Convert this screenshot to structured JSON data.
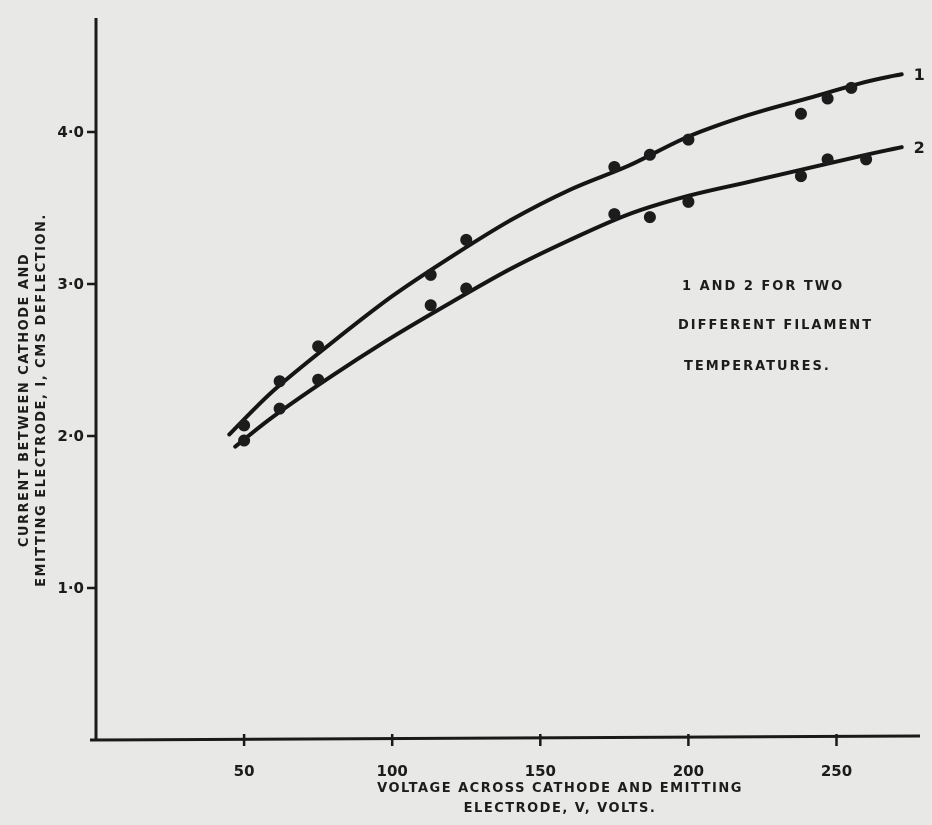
{
  "chart_data": {
    "type": "line",
    "title": "",
    "xlabel_lines": [
      "VOLTAGE ACROSS CATHODE AND EMITTING",
      "ELECTRODE, V, VOLTS."
    ],
    "ylabel_lines": [
      "CURRENT BETWEEN CATHODE AND",
      "EMITTING ELECTRODE, I, CMS DEFLECTION."
    ],
    "xlim": [
      0,
      275
    ],
    "ylim": [
      0,
      4.7
    ],
    "xticks": [
      {
        "value": 50,
        "label": "50"
      },
      {
        "value": 100,
        "label": "100"
      },
      {
        "value": 150,
        "label": "150"
      },
      {
        "value": 200,
        "label": "200"
      },
      {
        "value": 250,
        "label": "250"
      }
    ],
    "yticks": [
      {
        "value": 1,
        "label": "1·0"
      },
      {
        "value": 2,
        "label": "2·0"
      },
      {
        "value": 3,
        "label": "3·0"
      },
      {
        "value": 4,
        "label": "4·0"
      }
    ],
    "annotation_lines": [
      "1 AND 2 FOR TWO",
      "DIFFERENT FILAMENT",
      "TEMPERATURES."
    ],
    "grid": false,
    "series": [
      {
        "name": "1",
        "points": [
          [
            50,
            2.07
          ],
          [
            62,
            2.36
          ],
          [
            75,
            2.59
          ],
          [
            113,
            3.06
          ],
          [
            125,
            3.29
          ],
          [
            175,
            3.77
          ],
          [
            187,
            3.85
          ],
          [
            200,
            3.95
          ],
          [
            238,
            4.12
          ],
          [
            247,
            4.22
          ],
          [
            255,
            4.29
          ]
        ],
        "curve": [
          [
            45,
            2.01
          ],
          [
            60,
            2.3
          ],
          [
            80,
            2.62
          ],
          [
            100,
            2.92
          ],
          [
            120,
            3.18
          ],
          [
            140,
            3.42
          ],
          [
            160,
            3.62
          ],
          [
            180,
            3.78
          ],
          [
            200,
            3.97
          ],
          [
            220,
            4.11
          ],
          [
            240,
            4.22
          ],
          [
            260,
            4.33
          ],
          [
            272,
            4.38
          ]
        ]
      },
      {
        "name": "2",
        "points": [
          [
            50,
            1.97
          ],
          [
            62,
            2.18
          ],
          [
            75,
            2.37
          ],
          [
            113,
            2.86
          ],
          [
            125,
            2.97
          ],
          [
            175,
            3.46
          ],
          [
            187,
            3.44
          ],
          [
            200,
            3.54
          ],
          [
            238,
            3.71
          ],
          [
            247,
            3.82
          ],
          [
            260,
            3.82
          ]
        ],
        "curve": [
          [
            47,
            1.93
          ],
          [
            60,
            2.13
          ],
          [
            80,
            2.4
          ],
          [
            100,
            2.65
          ],
          [
            120,
            2.88
          ],
          [
            140,
            3.1
          ],
          [
            160,
            3.29
          ],
          [
            180,
            3.46
          ],
          [
            200,
            3.58
          ],
          [
            220,
            3.67
          ],
          [
            240,
            3.76
          ],
          [
            260,
            3.85
          ],
          [
            272,
            3.9
          ]
        ]
      }
    ]
  }
}
